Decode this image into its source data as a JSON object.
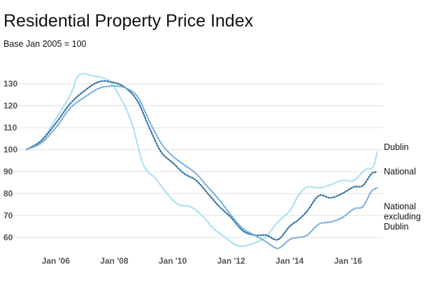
{
  "chart_data": {
    "type": "line",
    "title": "Residential Property Price Index",
    "subtitle": "Base Jan 2005 = 100",
    "xlabel": "",
    "ylabel": "",
    "x_ticks": [
      "Jan '06",
      "Jan '08",
      "Jan '10",
      "Jan '12",
      "Jan '14",
      "Jan '16"
    ],
    "x_tick_years": [
      2006,
      2008,
      2010,
      2012,
      2014,
      2016
    ],
    "y_ticks": [
      60,
      70,
      80,
      90,
      100,
      110,
      120,
      130
    ],
    "xlim": [
      2005.0,
      2017.2
    ],
    "ylim": [
      55,
      137
    ],
    "grid": true,
    "legend": "direct labels at line ends",
    "series": [
      {
        "name": "Dublin",
        "color": "#9fdcf0",
        "x": [
          2005.0,
          2005.5,
          2006.0,
          2006.5,
          2006.8,
          2007.3,
          2007.8,
          2008.2,
          2008.6,
          2009.0,
          2009.4,
          2009.8,
          2010.2,
          2010.6,
          2011.0,
          2011.4,
          2011.8,
          2012.1,
          2012.4,
          2012.9,
          2013.2,
          2013.6,
          2014.0,
          2014.3,
          2014.6,
          2015.0,
          2015.4,
          2015.8,
          2016.2,
          2016.6,
          2016.85,
          2017.0
        ],
        "values": [
          100,
          104,
          114,
          125,
          134,
          133.5,
          131.5,
          124,
          112,
          93,
          87,
          80,
          75,
          74,
          70,
          64,
          60,
          57,
          56,
          58,
          60.5,
          67,
          72,
          79,
          83,
          82.5,
          84,
          86,
          86,
          91,
          92,
          99
        ]
      },
      {
        "name": "National",
        "color": "#2d6ca0",
        "x": [
          2005.0,
          2005.5,
          2006.0,
          2006.5,
          2007.0,
          2007.5,
          2008.0,
          2008.4,
          2008.8,
          2009.2,
          2009.6,
          2010.0,
          2010.4,
          2010.8,
          2011.2,
          2011.6,
          2012.0,
          2012.4,
          2012.8,
          2013.2,
          2013.6,
          2014.0,
          2014.3,
          2014.6,
          2015.0,
          2015.4,
          2015.8,
          2016.2,
          2016.5,
          2016.8,
          2017.0
        ],
        "values": [
          100,
          104,
          112,
          121,
          127,
          131,
          130.5,
          128,
          122,
          110,
          99,
          94,
          89,
          86,
          80,
          74,
          69,
          63,
          61,
          61,
          59,
          65,
          68,
          72,
          79,
          78,
          80,
          83,
          83.5,
          89,
          89.7
        ]
      },
      {
        "name": "National excluding Dublin",
        "color": "#6aa8de",
        "x": [
          2005.0,
          2005.5,
          2006.0,
          2006.5,
          2007.0,
          2007.5,
          2008.0,
          2008.4,
          2008.8,
          2009.2,
          2009.6,
          2010.0,
          2010.4,
          2010.8,
          2011.2,
          2011.6,
          2012.0,
          2012.4,
          2012.8,
          2013.2,
          2013.6,
          2014.0,
          2014.3,
          2014.6,
          2015.0,
          2015.4,
          2015.8,
          2016.2,
          2016.5,
          2016.8,
          2017.0
        ],
        "values": [
          100,
          103,
          110,
          119,
          124,
          128,
          129,
          128,
          124,
          113,
          103,
          97,
          93,
          89,
          83,
          77,
          70,
          64,
          61,
          58,
          55,
          59,
          60,
          61,
          66,
          67,
          69,
          73,
          74,
          81,
          82.5
        ]
      }
    ]
  }
}
